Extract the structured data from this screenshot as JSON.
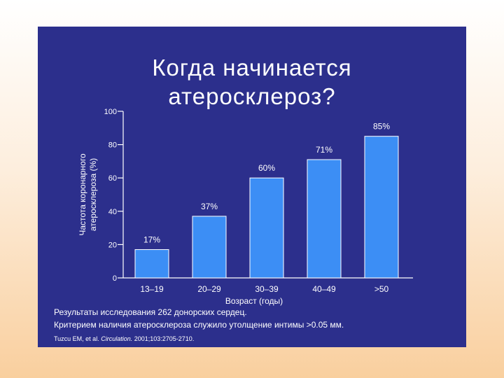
{
  "title_lines": [
    "Когда начинается",
    "атеросклероз?"
  ],
  "notes": [
    "Результаты исследования 262 донорских сердец.",
    "Критерием наличия атеросклероза служило утолщение интимы >0.05 мм."
  ],
  "citation": {
    "authors": "Tuzcu EM, et al. ",
    "journal": "Circulation.",
    "details": " 2001;103:2705-2710."
  },
  "colors": {
    "background": "#2c2f8c",
    "bar": "#3c8ef5",
    "text": "#ffffff"
  },
  "chart_data": {
    "type": "bar",
    "title": "Когда начинается атеросклероз?",
    "xlabel": "Возраст (годы)",
    "ylabel": "Частота коронарного атеросклероза (%)",
    "ylabel_lines": [
      "Частота коронарного",
      "атеросклероза (%)"
    ],
    "categories": [
      "13–19",
      "20–29",
      "30–39",
      "40–49",
      ">50"
    ],
    "values": [
      17,
      37,
      60,
      71,
      85
    ],
    "data_labels": [
      "17%",
      "37%",
      "60%",
      "71%",
      "85%"
    ],
    "ylim": [
      0,
      100
    ],
    "yticks": [
      0,
      20,
      40,
      60,
      80,
      100
    ],
    "grid": false,
    "legend": "none"
  }
}
